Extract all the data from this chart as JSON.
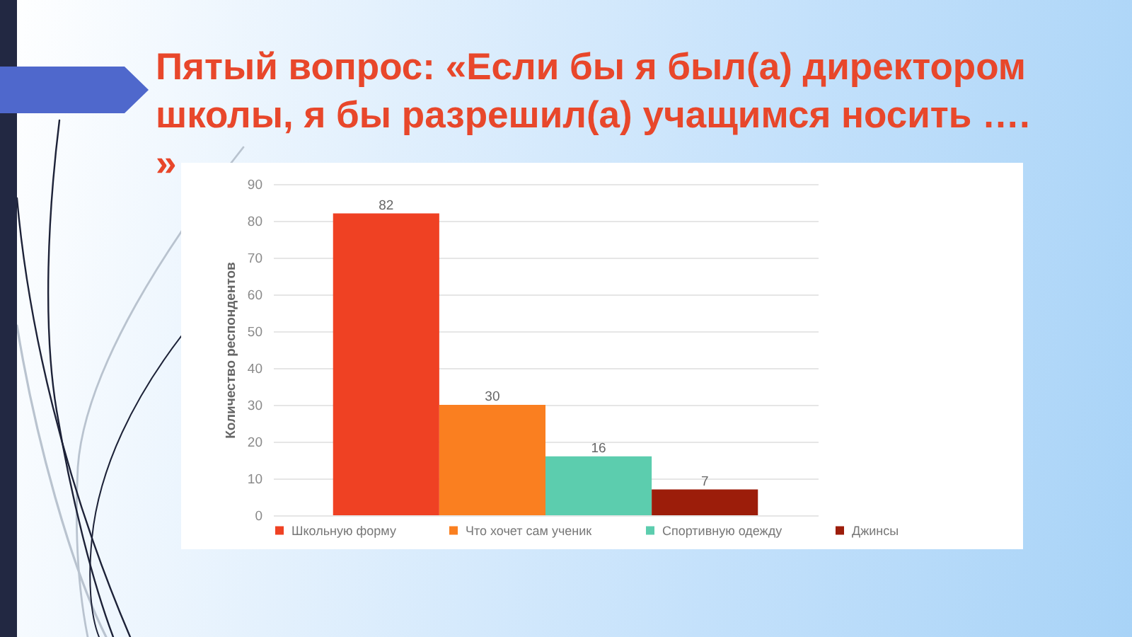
{
  "chart_data": {
    "type": "bar",
    "title": "Пятый вопрос: «Если бы я был(а) директором школы, я бы разрешил(а) учащимся носить …. »",
    "ylabel": "Количество респондентов",
    "categories": [
      null
    ],
    "series": [
      {
        "name": "Школьную форму",
        "color": "#ef4123",
        "values": [
          82
        ]
      },
      {
        "name": "Что хочет сам ученик",
        "color": "#fa7f20",
        "values": [
          30
        ]
      },
      {
        "name": "Спортивную одежду",
        "color": "#5ccdae",
        "values": [
          16
        ]
      },
      {
        "name": "Джинсы",
        "color": "#9c1d0a",
        "values": [
          7
        ]
      }
    ],
    "ylim": [
      0,
      90
    ],
    "yticks": [
      0,
      10,
      20,
      30,
      40,
      50,
      60,
      70,
      80,
      90
    ],
    "grid": "y",
    "legend": "bottom",
    "data_labels": true
  }
}
